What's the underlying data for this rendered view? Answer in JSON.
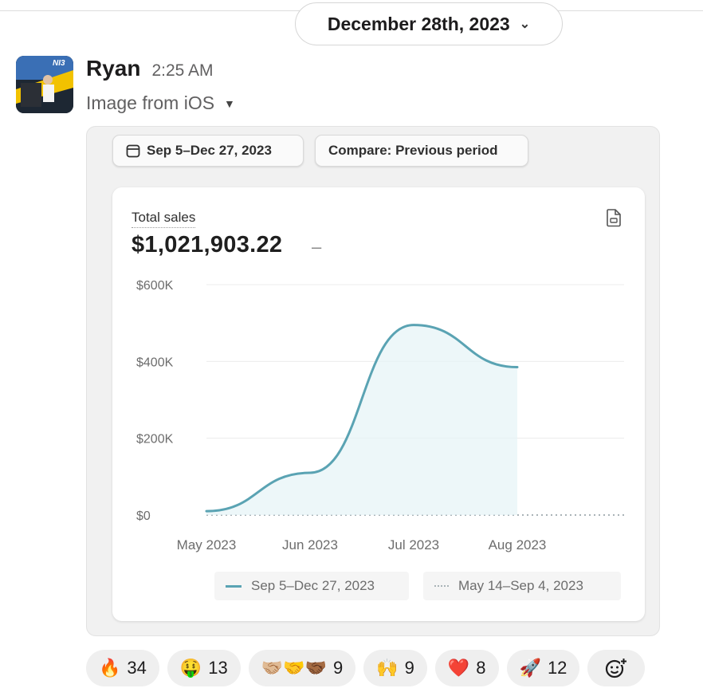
{
  "date_divider": {
    "label": "December 28th, 2023"
  },
  "message": {
    "sender": "Ryan",
    "time": "2:25 AM",
    "file_label": "Image from iOS"
  },
  "report": {
    "date_range_button": "Sep 5–Dec 27, 2023",
    "compare_button": "Compare: Previous period",
    "metric_title": "Total sales",
    "metric_value": "$1,021,903.22",
    "metric_change": "–",
    "legend": {
      "current": "Sep 5–Dec 27, 2023",
      "previous": "May 14–Sep 4, 2023"
    }
  },
  "chart_data": {
    "type": "line",
    "title": "Total sales",
    "xlabel": "",
    "ylabel": "",
    "x_ticks": [
      "May 2023",
      "Jun 2023",
      "Jul 2023",
      "Aug 2023"
    ],
    "y_ticks": [
      "$0",
      "$200K",
      "$400K",
      "$600K"
    ],
    "ylim": [
      0,
      600000
    ],
    "xlim": [
      "May 2023",
      "Aug 2023"
    ],
    "grid": true,
    "legend_position": "bottom",
    "series": [
      {
        "name": "Sep 5–Dec 27, 2023",
        "style": "solid",
        "color": "#5aa3b3",
        "points": [
          {
            "x": "May 2023",
            "y": 10000
          },
          {
            "x": "Jun 2023",
            "y": 110000
          },
          {
            "x": "Jul 2023",
            "y": 495000
          },
          {
            "x": "Aug 2023",
            "y": 385000
          }
        ]
      },
      {
        "name": "May 14–Sep 4, 2023",
        "style": "dotted",
        "color": "#a9b3b7",
        "points": [
          {
            "x": "May 2023",
            "y": 0
          },
          {
            "x": "Jun 2023",
            "y": 0
          },
          {
            "x": "Jul 2023",
            "y": 0
          },
          {
            "x": "Aug 2023",
            "y": 0
          }
        ]
      }
    ]
  },
  "reactions": [
    {
      "emoji": "🔥",
      "icon": "fire-icon",
      "count": "34"
    },
    {
      "emoji": "🤑",
      "icon": "money-mouth-face-icon",
      "count": "13"
    },
    {
      "emoji": "🤝🏼🤝🤝🏾",
      "icon": "handshake-icon",
      "count": "9"
    },
    {
      "emoji": "🙌",
      "icon": "raised-hands-icon",
      "count": "9"
    },
    {
      "emoji": "❤️",
      "icon": "red-heart-icon",
      "count": "8"
    },
    {
      "emoji": "🚀",
      "icon": "rocket-icon",
      "count": "12"
    }
  ],
  "colors": {
    "accent_line": "#5aa3b3",
    "area_fill": "#e6f3f7",
    "muted_text": "#616061"
  }
}
